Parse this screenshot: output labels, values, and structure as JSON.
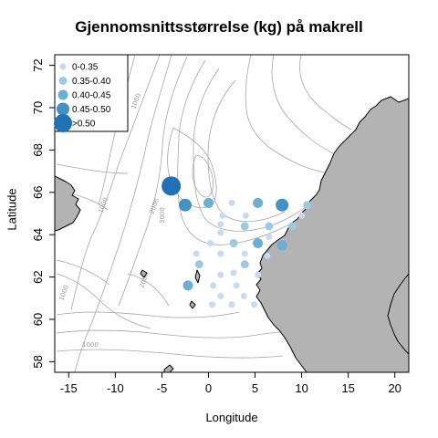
{
  "title": "Gjennomsnittsstørrelse (kg) på makrell",
  "x_axis_label": "Longitude",
  "y_axis_label": "Latitude",
  "colors": {
    "land": "#b3b3b3",
    "coast": "#000000",
    "contour": "#a6a6a6",
    "bins": [
      "#c6dbef",
      "#9ecae1",
      "#6baed6",
      "#4292c6",
      "#2171b5"
    ]
  },
  "legend": [
    {
      "label": "0-0.35",
      "bin": 0
    },
    {
      "label": "0.35-0.40",
      "bin": 1
    },
    {
      "label": "0.40-0.45",
      "bin": 2
    },
    {
      "label": "0.45-0.50",
      "bin": 3
    },
    {
      "label": ">0.50",
      "bin": 4
    }
  ],
  "contour_labels": [
    "1000",
    "1000",
    "2000",
    "3000",
    "2000",
    "1000",
    "1000"
  ],
  "chart_data": {
    "type": "scatter",
    "title": "Gjennomsnittsstørrelse (kg) på makrell",
    "xlabel": "Longitude",
    "ylabel": "Latitude",
    "xlim": [
      -16.5,
      21.5
    ],
    "ylim": [
      57.5,
      72.5
    ],
    "x_ticks": [
      -15,
      -10,
      -5,
      0,
      5,
      10,
      15,
      20
    ],
    "y_ticks": [
      58,
      60,
      62,
      64,
      66,
      68,
      70,
      72
    ],
    "size_bins": [
      "0-0.35",
      "0.35-0.40",
      "0.40-0.45",
      "0.45-0.50",
      ">0.50"
    ],
    "stations": [
      {
        "lon": -4.0,
        "lat": 66.3,
        "bin": 4
      },
      {
        "lon": -2.5,
        "lat": 65.4,
        "bin": 3
      },
      {
        "lon": 7.9,
        "lat": 65.4,
        "bin": 3
      },
      {
        "lon": 0.0,
        "lat": 65.5,
        "bin": 2
      },
      {
        "lon": 2.5,
        "lat": 65.5,
        "bin": 0
      },
      {
        "lon": 5.3,
        "lat": 65.5,
        "bin": 2
      },
      {
        "lon": 10.6,
        "lat": 65.4,
        "bin": 1
      },
      {
        "lon": 1.5,
        "lat": 64.9,
        "bin": 0
      },
      {
        "lon": 4.0,
        "lat": 64.9,
        "bin": 0
      },
      {
        "lon": 10.0,
        "lat": 64.9,
        "bin": 0
      },
      {
        "lon": 1.3,
        "lat": 64.5,
        "bin": 0
      },
      {
        "lon": 3.9,
        "lat": 64.4,
        "bin": 1
      },
      {
        "lon": 6.5,
        "lat": 64.4,
        "bin": 1
      },
      {
        "lon": 9.0,
        "lat": 64.4,
        "bin": 1
      },
      {
        "lon": 0.2,
        "lat": 63.6,
        "bin": 0
      },
      {
        "lon": 1.3,
        "lat": 64.1,
        "bin": 0
      },
      {
        "lon": 2.7,
        "lat": 63.6,
        "bin": 1
      },
      {
        "lon": 5.3,
        "lat": 63.6,
        "bin": 2
      },
      {
        "lon": 7.9,
        "lat": 63.5,
        "bin": 2
      },
      {
        "lon": 6.5,
        "lat": 63.9,
        "bin": 0
      },
      {
        "lon": -1.3,
        "lat": 63.1,
        "bin": 0
      },
      {
        "lon": 1.3,
        "lat": 63.1,
        "bin": 0
      },
      {
        "lon": 3.9,
        "lat": 63.1,
        "bin": 0
      },
      {
        "lon": 6.3,
        "lat": 63.0,
        "bin": 0
      },
      {
        "lon": -1.0,
        "lat": 62.6,
        "bin": 1
      },
      {
        "lon": 3.9,
        "lat": 62.6,
        "bin": 1
      },
      {
        "lon": 2.7,
        "lat": 62.2,
        "bin": 0
      },
      {
        "lon": 5.3,
        "lat": 62.1,
        "bin": 0
      },
      {
        "lon": 1.3,
        "lat": 62.1,
        "bin": 0
      },
      {
        "lon": -2.2,
        "lat": 61.6,
        "bin": 2
      },
      {
        "lon": 0.5,
        "lat": 61.6,
        "bin": 0
      },
      {
        "lon": 3.0,
        "lat": 61.6,
        "bin": 0
      },
      {
        "lon": 1.3,
        "lat": 61.1,
        "bin": 0
      },
      {
        "lon": 3.8,
        "lat": 61.1,
        "bin": 0
      },
      {
        "lon": 0.4,
        "lat": 60.7,
        "bin": 0
      },
      {
        "lon": 2.5,
        "lat": 60.7,
        "bin": 0
      },
      {
        "lon": 4.9,
        "lat": 60.7,
        "bin": 0
      }
    ]
  }
}
